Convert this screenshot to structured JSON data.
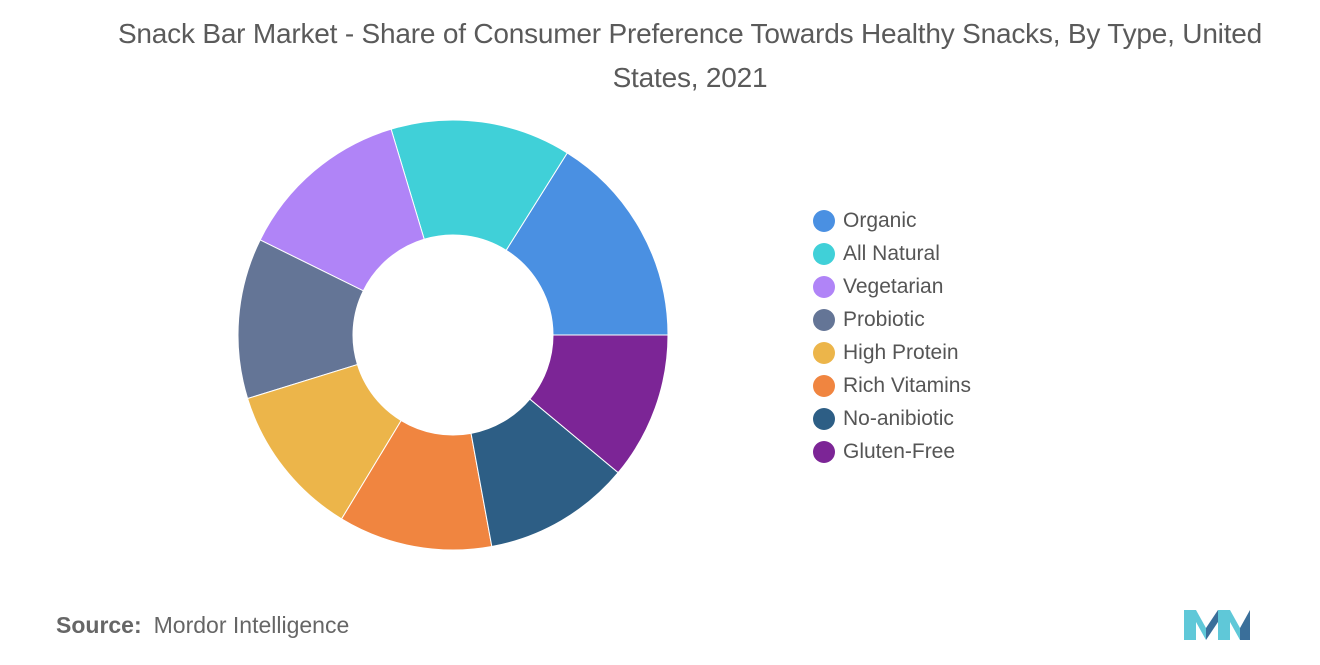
{
  "chart_data": {
    "type": "pie",
    "variant": "donut",
    "title": "Snack Bar Market - Share of Consumer Preference Towards Healthy Snacks, By Type, United States, 2021",
    "legend_position": "right",
    "series": [
      {
        "name": "Organic",
        "value": 16,
        "color": "#4a90e2"
      },
      {
        "name": "All Natural",
        "value": 13.5,
        "color": "#40d0d8"
      },
      {
        "name": "Vegetarian",
        "value": 13,
        "color": "#b084f7"
      },
      {
        "name": "Probiotic",
        "value": 12,
        "color": "#647596"
      },
      {
        "name": "High Protein",
        "value": 11.5,
        "color": "#ecb54a"
      },
      {
        "name": "Rich Vitamins",
        "value": 11.5,
        "color": "#f08540"
      },
      {
        "name": "No-anibiotic",
        "value": 11,
        "color": "#2d5e85"
      },
      {
        "name": "Gluten-Free",
        "value": 11,
        "color": "#7c2596"
      }
    ]
  },
  "source": {
    "label": "Source:",
    "text": "Mordor Intelligence"
  },
  "colors": {
    "logo_light": "#5fc8d8",
    "logo_dark": "#3a6f9a"
  },
  "logo": {
    "icon": "mordor-intelligence-logo-icon"
  }
}
